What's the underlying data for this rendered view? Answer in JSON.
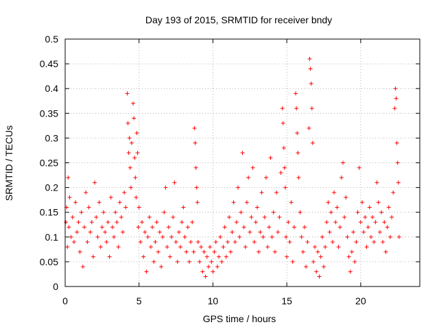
{
  "chart_data": {
    "type": "scatter",
    "title": "Day 193 of 2015, SRMTID for receiver bndy",
    "xlabel": "GPS time / hours",
    "ylabel": "SRMTID / TECUs",
    "xlim": [
      0,
      24
    ],
    "ylim": [
      0,
      0.5
    ],
    "x_ticks": [
      0,
      5,
      10,
      15,
      20
    ],
    "x_tick_labels": [
      "0",
      "5",
      "10",
      "15",
      "20"
    ],
    "y_ticks": [
      0,
      0.05,
      0.1,
      0.15,
      0.2,
      0.25,
      0.3,
      0.35,
      0.4,
      0.45,
      0.5
    ],
    "y_tick_labels": [
      "0",
      "0.05",
      "0.1",
      "0.15",
      "0.2",
      "0.25",
      "0.3",
      "0.35",
      "0.4",
      "0.45",
      "0.5"
    ],
    "grid": true,
    "marker": "+",
    "color": "#ff0000",
    "points": [
      [
        0.05,
        0.13
      ],
      [
        0.1,
        0.16
      ],
      [
        0.15,
        0.08
      ],
      [
        0.2,
        0.22
      ],
      [
        0.25,
        0.12
      ],
      [
        0.3,
        0.18
      ],
      [
        0.4,
        0.1
      ],
      [
        0.5,
        0.14
      ],
      [
        0.6,
        0.09
      ],
      [
        0.7,
        0.17
      ],
      [
        0.8,
        0.11
      ],
      [
        0.9,
        0.13
      ],
      [
        1.0,
        0.07
      ],
      [
        1.1,
        0.15
      ],
      [
        1.2,
        0.04
      ],
      [
        1.3,
        0.12
      ],
      [
        1.4,
        0.19
      ],
      [
        1.5,
        0.09
      ],
      [
        1.6,
        0.16
      ],
      [
        1.7,
        0.11
      ],
      [
        1.8,
        0.13
      ],
      [
        1.9,
        0.06
      ],
      [
        2.0,
        0.21
      ],
      [
        2.1,
        0.14
      ],
      [
        2.2,
        0.1
      ],
      [
        2.3,
        0.17
      ],
      [
        2.4,
        0.08
      ],
      [
        2.5,
        0.12
      ],
      [
        2.6,
        0.15
      ],
      [
        2.7,
        0.11
      ],
      [
        2.8,
        0.09
      ],
      [
        2.9,
        0.13
      ],
      [
        3.0,
        0.06
      ],
      [
        3.1,
        0.18
      ],
      [
        3.2,
        0.12
      ],
      [
        3.3,
        0.1
      ],
      [
        3.4,
        0.15
      ],
      [
        3.5,
        0.13
      ],
      [
        3.6,
        0.08
      ],
      [
        3.7,
        0.17
      ],
      [
        3.8,
        0.14
      ],
      [
        3.9,
        0.11
      ],
      [
        4.0,
        0.19
      ],
      [
        4.1,
        0.16
      ],
      [
        4.2,
        0.39
      ],
      [
        4.25,
        0.33
      ],
      [
        4.3,
        0.27
      ],
      [
        4.35,
        0.3
      ],
      [
        4.4,
        0.24
      ],
      [
        4.45,
        0.2
      ],
      [
        4.5,
        0.29
      ],
      [
        4.6,
        0.37
      ],
      [
        4.65,
        0.34
      ],
      [
        4.7,
        0.26
      ],
      [
        4.75,
        0.22
      ],
      [
        4.8,
        0.18
      ],
      [
        4.85,
        0.31
      ],
      [
        4.9,
        0.27
      ],
      [
        4.95,
        0.12
      ],
      [
        5.0,
        0.16
      ],
      [
        5.1,
        0.09
      ],
      [
        5.2,
        0.13
      ],
      [
        5.3,
        0.06
      ],
      [
        5.4,
        0.11
      ],
      [
        5.5,
        0.03
      ],
      [
        5.6,
        0.1
      ],
      [
        5.7,
        0.14
      ],
      [
        5.8,
        0.08
      ],
      [
        5.9,
        0.12
      ],
      [
        6.0,
        0.05
      ],
      [
        6.1,
        0.09
      ],
      [
        6.2,
        0.13
      ],
      [
        6.3,
        0.07
      ],
      [
        6.4,
        0.11
      ],
      [
        6.5,
        0.04
      ],
      [
        6.6,
        0.1
      ],
      [
        6.7,
        0.15
      ],
      [
        6.8,
        0.2
      ],
      [
        6.9,
        0.08
      ],
      [
        7.0,
        0.12
      ],
      [
        7.1,
        0.06
      ],
      [
        7.2,
        0.1
      ],
      [
        7.3,
        0.14
      ],
      [
        7.4,
        0.21
      ],
      [
        7.5,
        0.09
      ],
      [
        7.6,
        0.05
      ],
      [
        7.7,
        0.11
      ],
      [
        7.8,
        0.08
      ],
      [
        7.9,
        0.13
      ],
      [
        8.0,
        0.16
      ],
      [
        8.1,
        0.1
      ],
      [
        8.2,
        0.07
      ],
      [
        8.3,
        0.12
      ],
      [
        8.4,
        0.05
      ],
      [
        8.5,
        0.09
      ],
      [
        8.6,
        0.13
      ],
      [
        8.7,
        0.07
      ],
      [
        8.75,
        0.32
      ],
      [
        8.8,
        0.29
      ],
      [
        8.85,
        0.24
      ],
      [
        8.9,
        0.2
      ],
      [
        8.95,
        0.17
      ],
      [
        9.0,
        0.09
      ],
      [
        9.1,
        0.05
      ],
      [
        9.2,
        0.08
      ],
      [
        9.3,
        0.03
      ],
      [
        9.4,
        0.07
      ],
      [
        9.5,
        0.02
      ],
      [
        9.6,
        0.06
      ],
      [
        9.7,
        0.04
      ],
      [
        9.8,
        0.08
      ],
      [
        9.9,
        0.05
      ],
      [
        10.0,
        0.03
      ],
      [
        10.1,
        0.07
      ],
      [
        10.2,
        0.09
      ],
      [
        10.3,
        0.04
      ],
      [
        10.4,
        0.06
      ],
      [
        10.5,
        0.1
      ],
      [
        10.6,
        0.05
      ],
      [
        10.7,
        0.08
      ],
      [
        10.8,
        0.12
      ],
      [
        10.9,
        0.06
      ],
      [
        11.0,
        0.09
      ],
      [
        11.1,
        0.14
      ],
      [
        11.2,
        0.07
      ],
      [
        11.3,
        0.11
      ],
      [
        11.4,
        0.17
      ],
      [
        11.5,
        0.09
      ],
      [
        11.6,
        0.13
      ],
      [
        11.7,
        0.2
      ],
      [
        11.8,
        0.1
      ],
      [
        11.9,
        0.15
      ],
      [
        12.0,
        0.27
      ],
      [
        12.1,
        0.12
      ],
      [
        12.2,
        0.08
      ],
      [
        12.3,
        0.17
      ],
      [
        12.4,
        0.22
      ],
      [
        12.5,
        0.11
      ],
      [
        12.6,
        0.14
      ],
      [
        12.7,
        0.24
      ],
      [
        12.8,
        0.09
      ],
      [
        12.9,
        0.13
      ],
      [
        13.0,
        0.16
      ],
      [
        13.1,
        0.07
      ],
      [
        13.2,
        0.11
      ],
      [
        13.3,
        0.19
      ],
      [
        13.4,
        0.1
      ],
      [
        13.5,
        0.14
      ],
      [
        13.6,
        0.22
      ],
      [
        13.7,
        0.08
      ],
      [
        13.8,
        0.12
      ],
      [
        13.9,
        0.26
      ],
      [
        14.0,
        0.1
      ],
      [
        14.1,
        0.15
      ],
      [
        14.2,
        0.07
      ],
      [
        14.3,
        0.19
      ],
      [
        14.4,
        0.11
      ],
      [
        14.5,
        0.14
      ],
      [
        14.6,
        0.23
      ],
      [
        14.7,
        0.36
      ],
      [
        14.75,
        0.33
      ],
      [
        14.8,
        0.28
      ],
      [
        14.85,
        0.24
      ],
      [
        14.9,
        0.2
      ],
      [
        14.95,
        0.1
      ],
      [
        15.0,
        0.06
      ],
      [
        15.1,
        0.13
      ],
      [
        15.2,
        0.09
      ],
      [
        15.3,
        0.17
      ],
      [
        15.4,
        0.05
      ],
      [
        15.5,
        0.12
      ],
      [
        15.6,
        0.39
      ],
      [
        15.65,
        0.36
      ],
      [
        15.7,
        0.31
      ],
      [
        15.75,
        0.27
      ],
      [
        15.8,
        0.22
      ],
      [
        15.9,
        0.15
      ],
      [
        16.0,
        0.1
      ],
      [
        16.1,
        0.07
      ],
      [
        16.2,
        0.12
      ],
      [
        16.3,
        0.04
      ],
      [
        16.4,
        0.09
      ],
      [
        16.5,
        0.32
      ],
      [
        16.55,
        0.46
      ],
      [
        16.6,
        0.44
      ],
      [
        16.65,
        0.41
      ],
      [
        16.7,
        0.36
      ],
      [
        16.75,
        0.29
      ],
      [
        16.8,
        0.05
      ],
      [
        16.9,
        0.08
      ],
      [
        17.0,
        0.03
      ],
      [
        17.1,
        0.07
      ],
      [
        17.2,
        0.02
      ],
      [
        17.3,
        0.06
      ],
      [
        17.4,
        0.1
      ],
      [
        17.5,
        0.04
      ],
      [
        17.6,
        0.08
      ],
      [
        17.7,
        0.13
      ],
      [
        17.8,
        0.17
      ],
      [
        17.9,
        0.11
      ],
      [
        18.0,
        0.15
      ],
      [
        18.1,
        0.09
      ],
      [
        18.2,
        0.19
      ],
      [
        18.3,
        0.13
      ],
      [
        18.4,
        0.16
      ],
      [
        18.5,
        0.08
      ],
      [
        18.6,
        0.12
      ],
      [
        18.7,
        0.22
      ],
      [
        18.8,
        0.25
      ],
      [
        18.9,
        0.14
      ],
      [
        19.0,
        0.18
      ],
      [
        19.1,
        0.1
      ],
      [
        19.2,
        0.06
      ],
      [
        19.3,
        0.03
      ],
      [
        19.4,
        0.07
      ],
      [
        19.5,
        0.11
      ],
      [
        19.6,
        0.05
      ],
      [
        19.7,
        0.09
      ],
      [
        19.8,
        0.15
      ],
      [
        19.9,
        0.24
      ],
      [
        20.0,
        0.13
      ],
      [
        20.1,
        0.17
      ],
      [
        20.2,
        0.11
      ],
      [
        20.3,
        0.14
      ],
      [
        20.4,
        0.08
      ],
      [
        20.5,
        0.12
      ],
      [
        20.6,
        0.16
      ],
      [
        20.7,
        0.1
      ],
      [
        20.8,
        0.14
      ],
      [
        20.9,
        0.09
      ],
      [
        21.0,
        0.13
      ],
      [
        21.1,
        0.21
      ],
      [
        21.2,
        0.17
      ],
      [
        21.3,
        0.11
      ],
      [
        21.4,
        0.15
      ],
      [
        21.5,
        0.09
      ],
      [
        21.6,
        0.13
      ],
      [
        21.7,
        0.07
      ],
      [
        21.8,
        0.12
      ],
      [
        21.9,
        0.16
      ],
      [
        22.0,
        0.1
      ],
      [
        22.1,
        0.14
      ],
      [
        22.2,
        0.19
      ],
      [
        22.3,
        0.36
      ],
      [
        22.35,
        0.4
      ],
      [
        22.4,
        0.38
      ],
      [
        22.45,
        0.29
      ],
      [
        22.5,
        0.25
      ],
      [
        22.55,
        0.21
      ],
      [
        22.6,
        0.1
      ]
    ]
  }
}
